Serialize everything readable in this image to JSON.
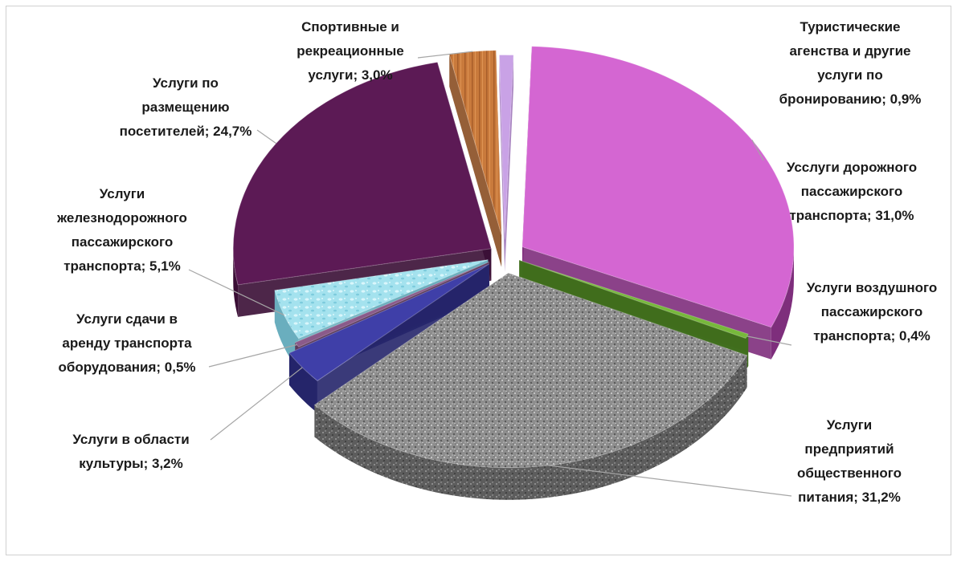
{
  "chart_data": {
    "type": "pie",
    "title": "",
    "style": "3d-exploded",
    "series": [
      {
        "name": "",
        "values": [
          {
            "label_lines": [
              "Усслуги дорожного",
              "пассажирского",
              "транспорта; 31,0%"
            ],
            "value": 31.0,
            "color": "#d466d2"
          },
          {
            "label_lines": [
              "Услуги воздушного",
              "пассажирского",
              "транспорта; 0,4%"
            ],
            "value": 0.4,
            "color": "#77b83b"
          },
          {
            "label_lines": [
              "Услуги",
              "предприятий",
              "общественного",
              "питания; 31,2%"
            ],
            "value": 31.2,
            "color": "#8e8e8e"
          },
          {
            "label_lines": [
              "Услуги в области",
              "культуры; 3,2%"
            ],
            "value": 3.2,
            "color": "#3f3fa8"
          },
          {
            "label_lines": [
              "Услуги сдачи в",
              "аренду транспорта",
              "оборудования; 0,5%"
            ],
            "value": 0.5,
            "color": "#8a5a8a"
          },
          {
            "label_lines": [
              "Услуги",
              "железнодорожного",
              "пассажирского",
              "транспорта; 5,1%"
            ],
            "value": 5.1,
            "color": "#9fe0ec"
          },
          {
            "label_lines": [
              "Услуги по",
              "размещению",
              "посетителей; 24,7%"
            ],
            "value": 24.7,
            "color": "#5c1a55"
          },
          {
            "label_lines": [
              "Спортивные и",
              "рекреационные",
              "услуги; 3,0%"
            ],
            "value": 3.0,
            "color": "#c9793c"
          },
          {
            "label_lines": [
              "Туристические",
              "агенства и другие",
              "услуги по",
              "бронированию; 0,9%"
            ],
            "value": 0.9,
            "color": "#c9a2e6"
          }
        ]
      }
    ],
    "legend": "none",
    "grid": false
  }
}
